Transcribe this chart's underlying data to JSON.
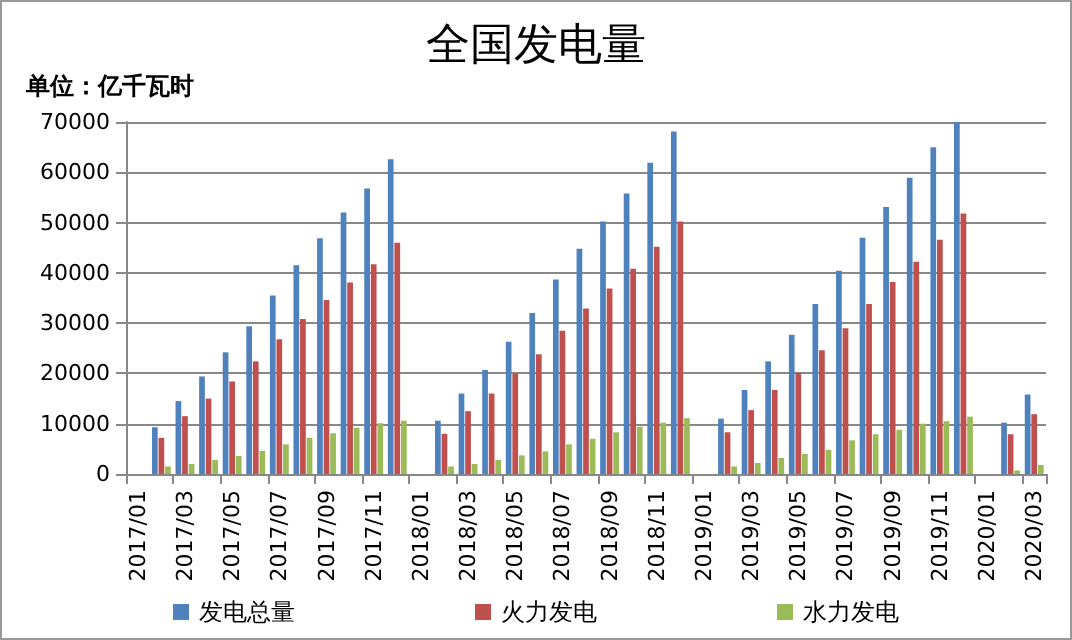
{
  "chart_data": {
    "type": "bar",
    "title": "全国发电量",
    "ylabel": "单位：亿千瓦时",
    "categories": [
      "2017/01",
      null,
      "2017/03",
      null,
      "2017/05",
      null,
      "2017/07",
      null,
      "2017/09",
      null,
      "2017/11",
      null,
      "2018/01",
      null,
      "2018/03",
      null,
      "2018/05",
      null,
      "2018/07",
      null,
      "2018/09",
      null,
      "2018/11",
      null,
      "2019/01",
      null,
      "2019/03",
      null,
      "2019/05",
      null,
      "2019/07",
      null,
      "2019/09",
      null,
      "2019/11",
      null,
      "2020/01",
      null,
      "2020/03"
    ],
    "series": [
      {
        "name": "发电总量",
        "color": "#4f81bd",
        "values": [
          null,
          9300,
          14500,
          19400,
          24200,
          29400,
          35500,
          41500,
          46900,
          52000,
          56800,
          62600,
          null,
          10600,
          16000,
          20700,
          26300,
          32000,
          38700,
          44800,
          50200,
          55800,
          61900,
          68100,
          null,
          11000,
          16700,
          22400,
          27700,
          33800,
          40400,
          47000,
          53100,
          58900,
          65000,
          70000,
          null,
          10200,
          15800
        ]
      },
      {
        "name": "火力发电",
        "color": "#c0504d",
        "values": [
          null,
          7200,
          11500,
          15000,
          18400,
          22400,
          26800,
          30800,
          34600,
          38100,
          41700,
          46000,
          null,
          8000,
          12500,
          16000,
          20000,
          23800,
          28500,
          32900,
          36900,
          40800,
          45200,
          50200,
          null,
          8300,
          12700,
          16700,
          20100,
          24600,
          29000,
          33800,
          38200,
          42200,
          46600,
          51800,
          null,
          7900,
          11900
        ]
      },
      {
        "name": "水力发电",
        "color": "#9bbb59",
        "values": [
          null,
          1500,
          2000,
          2800,
          3600,
          4600,
          5900,
          7200,
          8100,
          9200,
          10100,
          10600,
          null,
          1500,
          2000,
          2800,
          3700,
          4500,
          5900,
          7000,
          8300,
          9400,
          10200,
          11100,
          null,
          1500,
          2200,
          3200,
          4000,
          4800,
          6700,
          7900,
          8800,
          10000,
          10500,
          11400,
          null,
          700,
          1800
        ]
      }
    ],
    "ylim": [
      0,
      70000
    ],
    "yticks": [
      0,
      10000,
      20000,
      30000,
      40000,
      50000,
      60000,
      70000
    ],
    "grid": "y",
    "legend": "bottom"
  }
}
